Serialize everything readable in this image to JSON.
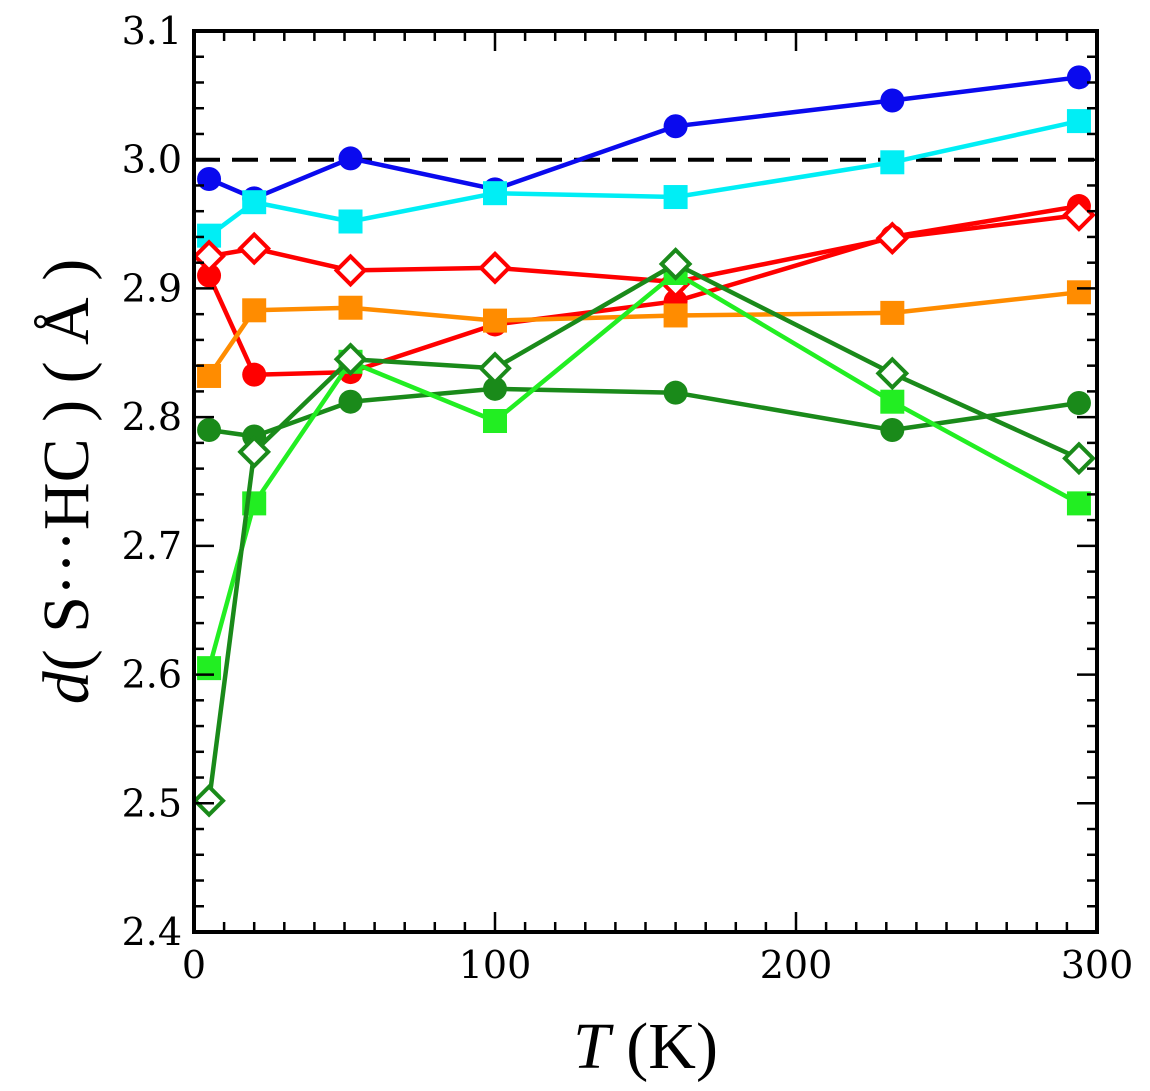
{
  "chart_data": {
    "type": "line",
    "title": "",
    "xlabel": {
      "italic": "T",
      "rest": " (K)"
    },
    "ylabel": {
      "italic": "d",
      "rest": "( S···HC ) ( Å )"
    },
    "xlim": [
      0,
      300
    ],
    "ylim": [
      2.4,
      3.1
    ],
    "xticks": [
      0,
      100,
      200,
      300
    ],
    "yticks": [
      2.4,
      2.5,
      2.6,
      2.7,
      2.8,
      2.9,
      3.0,
      3.1
    ],
    "xtick_labels": [
      "0",
      "100",
      "200",
      "300"
    ],
    "ytick_labels": [
      "2.4",
      "2.5",
      "2.6",
      "2.7",
      "2.8",
      "2.9",
      "3.0",
      "3.1"
    ],
    "reference_line": {
      "y": 3.0,
      "style": "dashed",
      "color": "#000000"
    },
    "series": [
      {
        "name": "blue-circles",
        "color": "#0a0aee",
        "marker": "circle",
        "x": [
          5,
          20,
          52,
          100,
          160,
          232,
          294
        ],
        "y": [
          2.985,
          2.97,
          3.001,
          2.977,
          3.026,
          3.046,
          3.064
        ]
      },
      {
        "name": "cyan-squares",
        "color": "#00eef5",
        "marker": "square",
        "x": [
          5,
          20,
          52,
          100,
          160,
          232,
          294
        ],
        "y": [
          2.941,
          2.967,
          2.952,
          2.974,
          2.971,
          2.998,
          3.03
        ]
      },
      {
        "name": "red-circles",
        "color": "#ff0000",
        "marker": "circle",
        "x": [
          5,
          20,
          52,
          100,
          160,
          232,
          294
        ],
        "y": [
          2.91,
          2.833,
          2.835,
          2.872,
          2.89,
          2.94,
          2.964
        ]
      },
      {
        "name": "red-open-diamonds",
        "color": "#ff0000",
        "marker": "open-diamond",
        "x": [
          5,
          20,
          52,
          100,
          160,
          232,
          294
        ],
        "y": [
          2.925,
          2.931,
          2.914,
          2.916,
          2.905,
          2.939,
          2.957
        ]
      },
      {
        "name": "orange-squares",
        "color": "#ff8c00",
        "marker": "square",
        "x": [
          5,
          20,
          52,
          100,
          160,
          232,
          294
        ],
        "y": [
          2.832,
          2.883,
          2.885,
          2.875,
          2.879,
          2.881,
          2.897
        ]
      },
      {
        "name": "dark-green-circles",
        "color": "#1a8a1a",
        "marker": "circle",
        "x": [
          5,
          20,
          52,
          100,
          160,
          232,
          294
        ],
        "y": [
          2.79,
          2.785,
          2.812,
          2.822,
          2.819,
          2.79,
          2.811
        ]
      },
      {
        "name": "light-green-squares",
        "color": "#22ee22",
        "marker": "square",
        "x": [
          5,
          20,
          52,
          100,
          160,
          232,
          294
        ],
        "y": [
          2.605,
          2.733,
          2.843,
          2.797,
          2.912,
          2.812,
          2.733
        ]
      },
      {
        "name": "dark-green-open-diamonds",
        "color": "#1a8a1a",
        "marker": "open-diamond",
        "x": [
          5,
          20,
          52,
          100,
          160,
          232,
          294
        ],
        "y": [
          2.502,
          2.773,
          2.845,
          2.838,
          2.919,
          2.834,
          2.768
        ]
      }
    ]
  }
}
